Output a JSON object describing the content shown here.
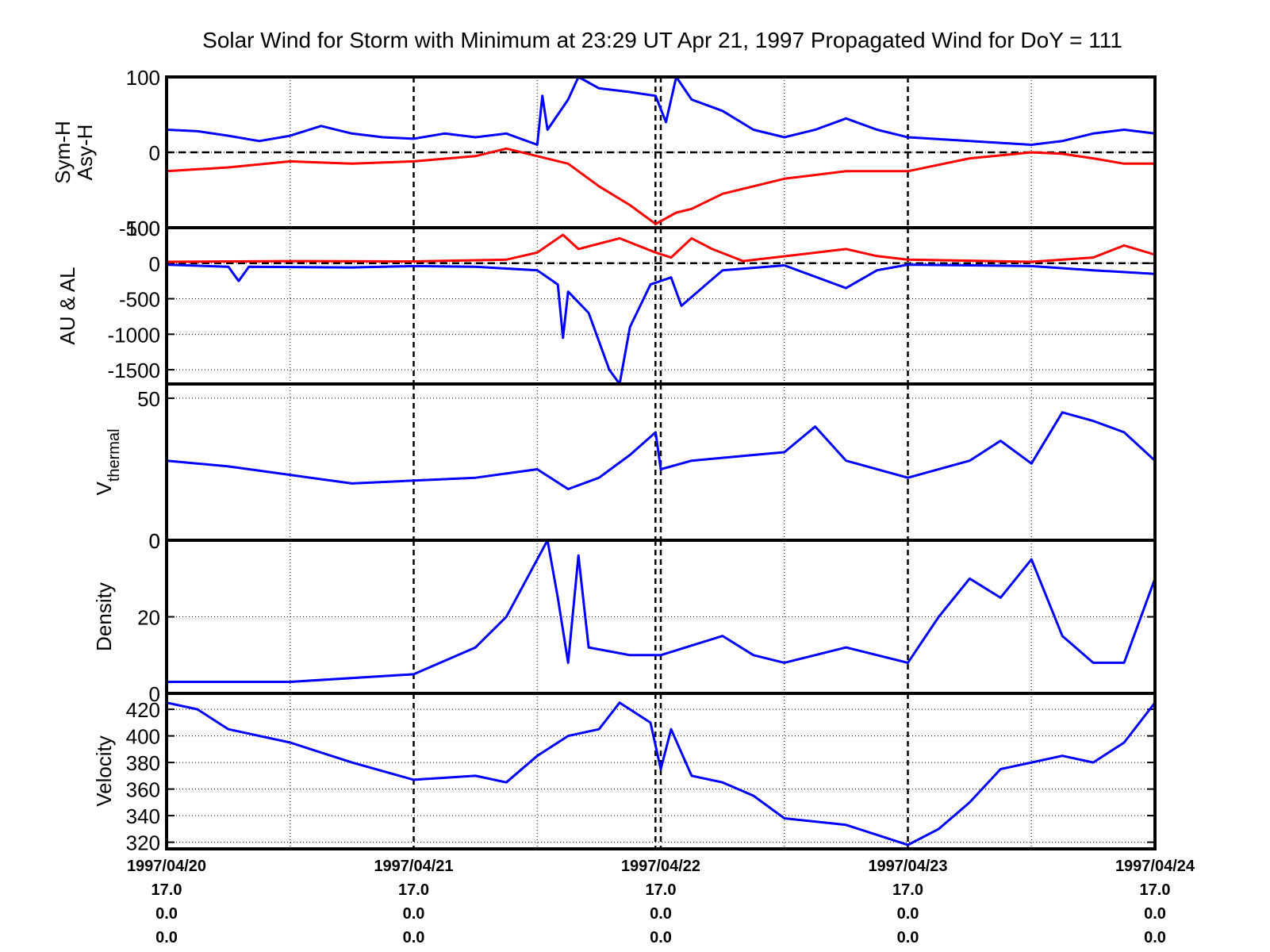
{
  "title": "Solar Wind for Storm with Minimum at 23:29 UT Apr 21, 1997  Propagated Wind for DoY = 111",
  "colors": {
    "series_blue": "#0000ff",
    "series_red": "#ff0000",
    "axes": "#000000"
  },
  "x_axis": {
    "ticks": [
      {
        "date": "1997/04/20",
        "l2": "17.0",
        "l3": "0.0",
        "l4": "0.0"
      },
      {
        "date": "1997/04/21",
        "l2": "17.0",
        "l3": "0.0",
        "l4": "0.0"
      },
      {
        "date": "1997/04/22",
        "l2": "17.0",
        "l3": "0.0",
        "l4": "0.0"
      },
      {
        "date": "1997/04/23",
        "l2": "17.0",
        "l3": "0.0",
        "l4": "0.0"
      },
      {
        "date": "1997/04/24",
        "l2": "17.0",
        "l3": "0.0",
        "l4": "0.0"
      }
    ],
    "storm_minimum_line": "1997/04/21 23:29"
  },
  "chart_data": [
    {
      "type": "line",
      "ylabel": [
        "Sym-H",
        "Asy-H"
      ],
      "ylim": [
        -100,
        100
      ],
      "yticks": [
        "100",
        "0",
        "-100"
      ],
      "x_domain": [
        "1997/04/20 00:00",
        "1997/04/24 00:00"
      ],
      "reference_line": 0,
      "grid": true,
      "series": [
        {
          "color": "#0000ff",
          "points": [
            [
              "1997/04/20 00:00",
              30
            ],
            [
              "1997/04/20 03:00",
              28
            ],
            [
              "1997/04/20 06:00",
              22
            ],
            [
              "1997/04/20 09:00",
              15
            ],
            [
              "1997/04/20 12:00",
              22
            ],
            [
              "1997/04/20 15:00",
              35
            ],
            [
              "1997/04/20 18:00",
              25
            ],
            [
              "1997/04/20 21:00",
              20
            ],
            [
              "1997/04/21 00:00",
              18
            ],
            [
              "1997/04/21 03:00",
              25
            ],
            [
              "1997/04/21 06:00",
              20
            ],
            [
              "1997/04/21 09:00",
              25
            ],
            [
              "1997/04/21 12:00",
              10
            ],
            [
              "1997/04/21 12:30",
              75
            ],
            [
              "1997/04/21 13:00",
              30
            ],
            [
              "1997/04/21 15:00",
              70
            ],
            [
              "1997/04/21 16:00",
              100
            ],
            [
              "1997/04/21 18:00",
              85
            ],
            [
              "1997/04/21 21:00",
              80
            ],
            [
              "1997/04/21 23:30",
              75
            ],
            [
              "1997/04/22 00:30",
              40
            ],
            [
              "1997/04/22 01:30",
              100
            ],
            [
              "1997/04/22 03:00",
              70
            ],
            [
              "1997/04/22 06:00",
              55
            ],
            [
              "1997/04/22 09:00",
              30
            ],
            [
              "1997/04/22 12:00",
              20
            ],
            [
              "1997/04/22 15:00",
              30
            ],
            [
              "1997/04/22 18:00",
              45
            ],
            [
              "1997/04/22 21:00",
              30
            ],
            [
              "1997/04/23 00:00",
              20
            ],
            [
              "1997/04/23 06:00",
              15
            ],
            [
              "1997/04/23 12:00",
              10
            ],
            [
              "1997/04/23 15:00",
              15
            ],
            [
              "1997/04/23 18:00",
              25
            ],
            [
              "1997/04/23 21:00",
              30
            ],
            [
              "1997/04/24 00:00",
              25
            ]
          ]
        },
        {
          "color": "#ff0000",
          "points": [
            [
              "1997/04/20 00:00",
              -25
            ],
            [
              "1997/04/20 06:00",
              -20
            ],
            [
              "1997/04/20 12:00",
              -12
            ],
            [
              "1997/04/20 18:00",
              -15
            ],
            [
              "1997/04/21 00:00",
              -12
            ],
            [
              "1997/04/21 06:00",
              -5
            ],
            [
              "1997/04/21 09:00",
              5
            ],
            [
              "1997/04/21 12:00",
              -5
            ],
            [
              "1997/04/21 15:00",
              -15
            ],
            [
              "1997/04/21 18:00",
              -45
            ],
            [
              "1997/04/21 21:00",
              -70
            ],
            [
              "1997/04/21 23:30",
              -95
            ],
            [
              "1997/04/22 01:30",
              -80
            ],
            [
              "1997/04/22 03:00",
              -75
            ],
            [
              "1997/04/22 06:00",
              -55
            ],
            [
              "1997/04/22 12:00",
              -35
            ],
            [
              "1997/04/22 18:00",
              -25
            ],
            [
              "1997/04/23 00:00",
              -25
            ],
            [
              "1997/04/23 06:00",
              -8
            ],
            [
              "1997/04/23 12:00",
              0
            ],
            [
              "1997/04/23 15:00",
              -2
            ],
            [
              "1997/04/23 18:00",
              -8
            ],
            [
              "1997/04/23 21:00",
              -15
            ],
            [
              "1997/04/24 00:00",
              -15
            ]
          ]
        }
      ]
    },
    {
      "type": "line",
      "ylabel": [
        "AU & AL"
      ],
      "ylim": [
        -1700,
        500
      ],
      "yticks": [
        "500",
        "0",
        "-500",
        "-1000",
        "-1500"
      ],
      "x_domain": [
        "1997/04/20 00:00",
        "1997/04/24 00:00"
      ],
      "reference_line": 0,
      "grid": true,
      "series": [
        {
          "color": "#0000ff",
          "points": [
            [
              "1997/04/20 00:00",
              -20
            ],
            [
              "1997/04/20 06:00",
              -50
            ],
            [
              "1997/04/20 07:00",
              -250
            ],
            [
              "1997/04/20 08:00",
              -50
            ],
            [
              "1997/04/20 18:00",
              -60
            ],
            [
              "1997/04/21 00:00",
              -40
            ],
            [
              "1997/04/21 06:00",
              -50
            ],
            [
              "1997/04/21 12:00",
              -100
            ],
            [
              "1997/04/21 14:00",
              -300
            ],
            [
              "1997/04/21 14:30",
              -1050
            ],
            [
              "1997/04/21 15:00",
              -400
            ],
            [
              "1997/04/21 17:00",
              -700
            ],
            [
              "1997/04/21 19:00",
              -1500
            ],
            [
              "1997/04/21 20:00",
              -1700
            ],
            [
              "1997/04/21 21:00",
              -900
            ],
            [
              "1997/04/21 23:00",
              -300
            ],
            [
              "1997/04/22 01:00",
              -200
            ],
            [
              "1997/04/22 02:00",
              -600
            ],
            [
              "1997/04/22 04:00",
              -350
            ],
            [
              "1997/04/22 06:00",
              -100
            ],
            [
              "1997/04/22 12:00",
              -30
            ],
            [
              "1997/04/22 18:00",
              -350
            ],
            [
              "1997/04/22 21:00",
              -100
            ],
            [
              "1997/04/23 00:00",
              -20
            ],
            [
              "1997/04/23 12:00",
              -40
            ],
            [
              "1997/04/23 18:00",
              -100
            ],
            [
              "1997/04/24 00:00",
              -150
            ]
          ]
        },
        {
          "color": "#ff0000",
          "points": [
            [
              "1997/04/20 00:00",
              20
            ],
            [
              "1997/04/20 12:00",
              30
            ],
            [
              "1997/04/21 00:00",
              25
            ],
            [
              "1997/04/21 09:00",
              50
            ],
            [
              "1997/04/21 12:00",
              150
            ],
            [
              "1997/04/21 14:30",
              400
            ],
            [
              "1997/04/21 16:00",
              200
            ],
            [
              "1997/04/21 20:00",
              350
            ],
            [
              "1997/04/21 23:30",
              150
            ],
            [
              "1997/04/22 01:00",
              80
            ],
            [
              "1997/04/22 03:00",
              350
            ],
            [
              "1997/04/22 05:00",
              200
            ],
            [
              "1997/04/22 08:00",
              30
            ],
            [
              "1997/04/22 18:00",
              200
            ],
            [
              "1997/04/22 21:00",
              100
            ],
            [
              "1997/04/23 00:00",
              50
            ],
            [
              "1997/04/23 12:00",
              20
            ],
            [
              "1997/04/23 18:00",
              80
            ],
            [
              "1997/04/23 21:00",
              250
            ],
            [
              "1997/04/24 00:00",
              120
            ]
          ]
        }
      ]
    },
    {
      "type": "line",
      "ylabel": [
        "V",
        "thermal"
      ],
      "ylim": [
        0,
        55
      ],
      "yticks": [
        "50",
        "0"
      ],
      "x_domain": [
        "1997/04/20 00:00",
        "1997/04/24 00:00"
      ],
      "grid": true,
      "series": [
        {
          "color": "#0000ff",
          "points": [
            [
              "1997/04/20 00:00",
              28
            ],
            [
              "1997/04/20 06:00",
              26
            ],
            [
              "1997/04/20 12:00",
              23
            ],
            [
              "1997/04/20 18:00",
              20
            ],
            [
              "1997/04/21 00:00",
              21
            ],
            [
              "1997/04/21 06:00",
              22
            ],
            [
              "1997/04/21 12:00",
              25
            ],
            [
              "1997/04/21 15:00",
              18
            ],
            [
              "1997/04/21 18:00",
              22
            ],
            [
              "1997/04/21 21:00",
              30
            ],
            [
              "1997/04/21 23:30",
              38
            ],
            [
              "1997/04/22 00:00",
              25
            ],
            [
              "1997/04/22 03:00",
              28
            ],
            [
              "1997/04/22 09:00",
              30
            ],
            [
              "1997/04/22 12:00",
              31
            ],
            [
              "1997/04/22 15:00",
              40
            ],
            [
              "1997/04/22 18:00",
              28
            ],
            [
              "1997/04/23 00:00",
              22
            ],
            [
              "1997/04/23 06:00",
              28
            ],
            [
              "1997/04/23 09:00",
              35
            ],
            [
              "1997/04/23 12:00",
              27
            ],
            [
              "1997/04/23 15:00",
              45
            ],
            [
              "1997/04/23 18:00",
              42
            ],
            [
              "1997/04/23 21:00",
              38
            ],
            [
              "1997/04/24 00:00",
              28
            ]
          ]
        }
      ]
    },
    {
      "type": "line",
      "ylabel": [
        "Density"
      ],
      "ylim": [
        0,
        40
      ],
      "yticks": [
        "0",
        "20",
        "0"
      ],
      "x_domain": [
        "1997/04/20 00:00",
        "1997/04/24 00:00"
      ],
      "grid": true,
      "series": [
        {
          "color": "#0000ff",
          "points": [
            [
              "1997/04/20 00:00",
              3
            ],
            [
              "1997/04/20 12:00",
              3
            ],
            [
              "1997/04/21 00:00",
              5
            ],
            [
              "1997/04/21 06:00",
              12
            ],
            [
              "1997/04/21 09:00",
              20
            ],
            [
              "1997/04/21 12:00",
              35
            ],
            [
              "1997/04/21 13:00",
              40
            ],
            [
              "1997/04/21 14:00",
              25
            ],
            [
              "1997/04/21 15:00",
              8
            ],
            [
              "1997/04/21 16:00",
              36
            ],
            [
              "1997/04/21 17:00",
              12
            ],
            [
              "1997/04/21 21:00",
              10
            ],
            [
              "1997/04/22 00:00",
              10
            ],
            [
              "1997/04/22 06:00",
              15
            ],
            [
              "1997/04/22 09:00",
              10
            ],
            [
              "1997/04/22 12:00",
              8
            ],
            [
              "1997/04/22 18:00",
              12
            ],
            [
              "1997/04/23 00:00",
              8
            ],
            [
              "1997/04/23 03:00",
              20
            ],
            [
              "1997/04/23 06:00",
              30
            ],
            [
              "1997/04/23 09:00",
              25
            ],
            [
              "1997/04/23 12:00",
              35
            ],
            [
              "1997/04/23 15:00",
              15
            ],
            [
              "1997/04/23 18:00",
              8
            ],
            [
              "1997/04/23 21:00",
              8
            ],
            [
              "1997/04/24 00:00",
              30
            ]
          ]
        }
      ]
    },
    {
      "type": "line",
      "ylabel": [
        "Velocity"
      ],
      "ylim": [
        315,
        432
      ],
      "yticks": [
        "420",
        "400",
        "380",
        "360",
        "340",
        "320"
      ],
      "x_domain": [
        "1997/04/20 00:00",
        "1997/04/24 00:00"
      ],
      "grid": true,
      "series": [
        {
          "color": "#0000ff",
          "points": [
            [
              "1997/04/20 00:00",
              425
            ],
            [
              "1997/04/20 03:00",
              420
            ],
            [
              "1997/04/20 06:00",
              405
            ],
            [
              "1997/04/20 12:00",
              395
            ],
            [
              "1997/04/20 18:00",
              380
            ],
            [
              "1997/04/21 00:00",
              367
            ],
            [
              "1997/04/21 06:00",
              370
            ],
            [
              "1997/04/21 09:00",
              365
            ],
            [
              "1997/04/21 12:00",
              385
            ],
            [
              "1997/04/21 15:00",
              400
            ],
            [
              "1997/04/21 18:00",
              405
            ],
            [
              "1997/04/21 20:00",
              425
            ],
            [
              "1997/04/21 23:00",
              410
            ],
            [
              "1997/04/22 00:00",
              375
            ],
            [
              "1997/04/22 01:00",
              405
            ],
            [
              "1997/04/22 03:00",
              370
            ],
            [
              "1997/04/22 06:00",
              365
            ],
            [
              "1997/04/22 09:00",
              355
            ],
            [
              "1997/04/22 12:00",
              338
            ],
            [
              "1997/04/22 18:00",
              333
            ],
            [
              "1997/04/23 00:00",
              318
            ],
            [
              "1997/04/23 03:00",
              330
            ],
            [
              "1997/04/23 06:00",
              350
            ],
            [
              "1997/04/23 09:00",
              375
            ],
            [
              "1997/04/23 12:00",
              380
            ],
            [
              "1997/04/23 15:00",
              385
            ],
            [
              "1997/04/23 18:00",
              380
            ],
            [
              "1997/04/23 21:00",
              395
            ],
            [
              "1997/04/24 00:00",
              425
            ]
          ]
        }
      ]
    }
  ]
}
